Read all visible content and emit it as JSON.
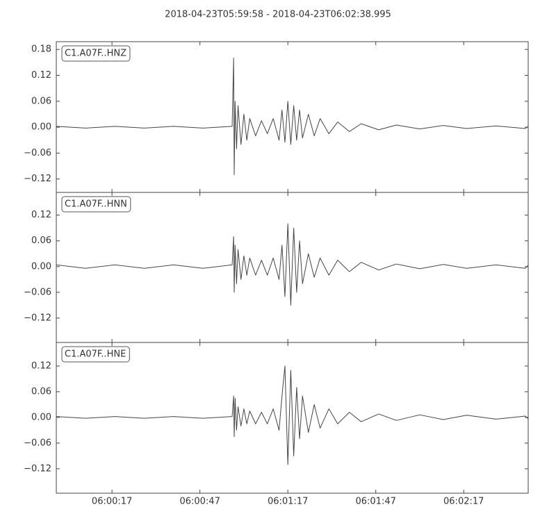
{
  "title": "2018-04-23T05:59:58  -  2018-04-23T06:02:38.995",
  "chart_data": [
    {
      "type": "line",
      "xlim": [
        0,
        161
      ],
      "x": [
        0,
        10,
        20,
        30,
        40,
        50,
        60,
        60.5,
        60.7,
        61,
        61.5,
        62,
        63,
        64,
        65,
        66,
        68,
        70,
        72,
        74,
        76,
        77,
        78,
        79,
        80,
        81,
        82,
        83,
        84,
        86,
        88,
        90,
        93,
        96,
        100,
        104,
        110,
        116,
        124,
        132,
        140,
        150,
        160,
        161
      ],
      "series": [
        {
          "name": "C1.A07F..HNZ",
          "color": "#444444",
          "values": [
            0.002,
            -0.002,
            0.002,
            -0.002,
            0.002,
            -0.002,
            0.002,
            0.16,
            -0.11,
            0.06,
            -0.05,
            0.05,
            -0.04,
            0.03,
            -0.03,
            0.02,
            -0.02,
            0.015,
            -0.015,
            0.02,
            -0.03,
            0.04,
            -0.035,
            0.06,
            -0.04,
            0.05,
            -0.03,
            0.04,
            -0.025,
            0.03,
            -0.02,
            0.02,
            -0.015,
            0.012,
            -0.01,
            0.008,
            -0.006,
            0.005,
            -0.004,
            0.004,
            -0.003,
            0.003,
            -0.003,
            0.002
          ]
        }
      ],
      "ylim": [
        -0.151,
        0.198
      ],
      "yticks": [
        {
          "value": -0.12,
          "label": "−0.12"
        },
        {
          "value": -0.06,
          "label": "−0.06"
        },
        {
          "value": 0,
          "label": "0.00"
        },
        0.06,
        0.12,
        0.18
      ]
    },
    {
      "type": "line",
      "xlim": [
        0,
        161
      ],
      "x": [
        0,
        10,
        20,
        30,
        40,
        50,
        60,
        60.5,
        60.7,
        61,
        61.5,
        62,
        63,
        64,
        65,
        66,
        68,
        70,
        72,
        74,
        76,
        77,
        78,
        79,
        80,
        81,
        82,
        83,
        84,
        86,
        88,
        90,
        93,
        96,
        100,
        104,
        110,
        116,
        124,
        132,
        140,
        150,
        160,
        161
      ],
      "series": [
        {
          "name": "C1.A07F..HNN",
          "color": "#444444",
          "values": [
            0.004,
            -0.004,
            0.004,
            -0.004,
            0.004,
            -0.004,
            0.004,
            0.07,
            -0.06,
            0.05,
            -0.04,
            0.04,
            -0.03,
            0.025,
            -0.02,
            0.02,
            -0.02,
            0.015,
            -0.02,
            0.02,
            -0.03,
            0.05,
            -0.07,
            0.1,
            -0.09,
            0.09,
            -0.06,
            0.06,
            -0.04,
            0.03,
            -0.025,
            0.02,
            -0.02,
            0.015,
            -0.012,
            0.01,
            -0.008,
            0.006,
            -0.005,
            0.005,
            -0.004,
            0.004,
            -0.004,
            0.003
          ]
        }
      ],
      "ylim": [
        -0.177,
        0.173
      ],
      "yticks": [
        {
          "value": -0.12,
          "label": "−0.12"
        },
        {
          "value": -0.06,
          "label": "−0.06"
        },
        {
          "value": 0,
          "label": "0.00"
        },
        0.06,
        0.12
      ]
    },
    {
      "type": "line",
      "xlim": [
        0,
        161
      ],
      "x": [
        0,
        10,
        20,
        30,
        40,
        50,
        60,
        60.5,
        60.7,
        61,
        61.5,
        62,
        63,
        64,
        65,
        66,
        68,
        70,
        72,
        74,
        76,
        77,
        78,
        79,
        80,
        81,
        82,
        83,
        84,
        86,
        88,
        90,
        93,
        96,
        100,
        104,
        110,
        116,
        124,
        132,
        140,
        150,
        160,
        161
      ],
      "series": [
        {
          "name": "C1.A07F..HNE",
          "color": "#444444",
          "values": [
            0.002,
            -0.002,
            0.002,
            -0.002,
            0.002,
            -0.002,
            0.002,
            0.05,
            -0.045,
            0.045,
            -0.03,
            0.025,
            -0.02,
            0.02,
            -0.015,
            0.015,
            -0.015,
            0.012,
            -0.015,
            0.02,
            -0.03,
            0.05,
            0.12,
            -0.11,
            0.11,
            -0.09,
            0.07,
            -0.05,
            0.05,
            -0.035,
            0.03,
            -0.025,
            0.02,
            -0.015,
            0.012,
            -0.01,
            0.008,
            -0.007,
            0.006,
            -0.005,
            0.005,
            -0.004,
            0.003,
            -0.003
          ]
        }
      ],
      "ylim": [
        -0.177,
        0.175
      ],
      "yticks": [
        {
          "value": -0.12,
          "label": "−0.12"
        },
        {
          "value": -0.06,
          "label": "−0.06"
        },
        {
          "value": 0,
          "label": "0.00"
        },
        0.06,
        0.12
      ],
      "xticks": [
        {
          "value": 19,
          "label": "06:00:17"
        },
        {
          "value": 49,
          "label": "06:00:47"
        },
        {
          "value": 79,
          "label": "06:01:17"
        },
        {
          "value": 109,
          "label": "06:01:47"
        },
        {
          "value": 139,
          "label": "06:02:17"
        }
      ]
    }
  ]
}
